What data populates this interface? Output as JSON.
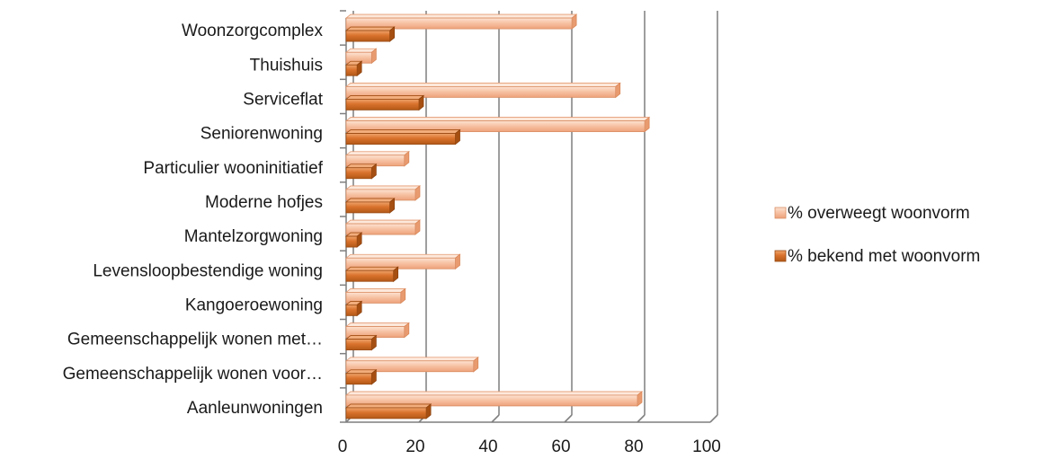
{
  "chart_data": {
    "type": "bar",
    "orientation": "horizontal",
    "title": "",
    "xlabel": "",
    "ylabel": "",
    "categories": [
      "Woonzorgcomplex",
      "Thuishuis",
      "Serviceflat",
      "Seniorenwoning",
      "Particulier wooninitiatief",
      "Moderne hofjes",
      "Mantelzorgwoning",
      "Levensloopbestendige woning",
      "Kangoeroewoning",
      "Gemeenschappelijk wonen met…",
      "Gemeenschappelijk wonen voor…",
      "Aanleunwoningen"
    ],
    "series": [
      {
        "name": "% overweegt woonvorm",
        "color": "#f5b895",
        "values": [
          62,
          7,
          74,
          82,
          16,
          19,
          19,
          30,
          15,
          16,
          35,
          80
        ]
      },
      {
        "name": "% bekend met woonvorm",
        "color": "#d46c24",
        "values": [
          12,
          3,
          20,
          30,
          7,
          12,
          3,
          13,
          3,
          7,
          7,
          22
        ]
      }
    ],
    "xlim": [
      0,
      100
    ],
    "xticks": [
      "0",
      "20",
      "40",
      "60",
      "80",
      "100"
    ],
    "grid": true,
    "legend_position": "right"
  }
}
